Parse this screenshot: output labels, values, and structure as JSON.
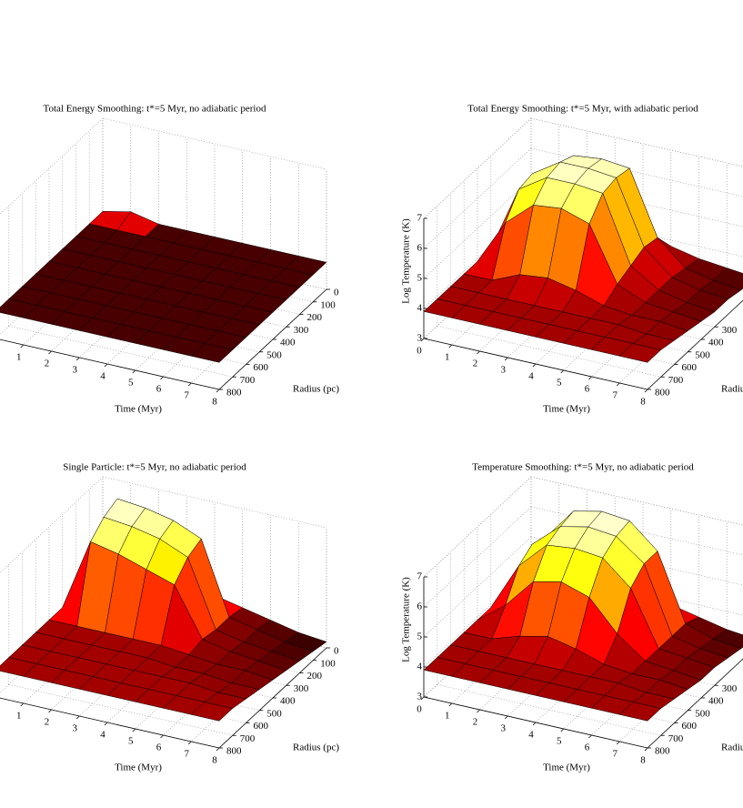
{
  "chart_data": [
    {
      "type": "surface",
      "title": "Total Energy Smoothing: t*=5 Myr, no adiabatic period",
      "xlabel": "Time (Myr)",
      "ylabel": "Radius (pc)",
      "colormap": "hot",
      "clim": [
        3.88,
        4.1
      ],
      "grid": true,
      "xlim": [
        0,
        8
      ],
      "ylim": [
        0,
        800
      ],
      "zlim": [
        3,
        7
      ],
      "xticks": [
        1,
        2,
        3,
        4,
        5,
        6,
        7,
        8
      ],
      "yticks": [
        0,
        100,
        200,
        300,
        400,
        500,
        600,
        700,
        800
      ],
      "x": [
        0,
        1,
        2,
        3,
        4,
        5,
        6,
        7,
        8
      ],
      "y": [
        0,
        100,
        200,
        300,
        400,
        500,
        600,
        700,
        800
      ],
      "z": [
        [
          3.9,
          4.1,
          3.9,
          3.9,
          3.9,
          3.9,
          3.9,
          3.9,
          3.9
        ],
        [
          3.9,
          3.9,
          3.9,
          3.9,
          3.9,
          3.9,
          3.9,
          3.9,
          3.9
        ],
        [
          3.9,
          3.9,
          3.9,
          3.9,
          3.9,
          3.9,
          3.9,
          3.9,
          3.9
        ],
        [
          3.9,
          3.9,
          3.9,
          3.9,
          3.9,
          3.9,
          3.9,
          3.9,
          3.9
        ],
        [
          3.9,
          3.9,
          3.9,
          3.9,
          3.9,
          3.9,
          3.9,
          3.9,
          3.9
        ],
        [
          3.9,
          3.9,
          3.9,
          3.9,
          3.9,
          3.9,
          3.9,
          3.9,
          3.9
        ],
        [
          3.9,
          3.9,
          3.9,
          3.9,
          3.9,
          3.9,
          3.9,
          3.9,
          3.9
        ],
        [
          3.9,
          3.9,
          3.9,
          3.9,
          3.9,
          3.9,
          3.9,
          3.9,
          3.9
        ],
        [
          3.9,
          3.9,
          3.9,
          3.9,
          3.9,
          3.9,
          3.9,
          3.9,
          3.9
        ]
      ]
    },
    {
      "type": "surface",
      "title": "Total Energy Smoothing: t*=5 Myr, with adiabatic period",
      "xlabel": "Time (Myr)",
      "ylabel": "Radius (pc)",
      "zlabel": "Log Temperature (K)",
      "colormap": "hot",
      "clim": [
        3,
        7
      ],
      "grid": true,
      "xlim": [
        0,
        8
      ],
      "ylim": [
        0,
        800
      ],
      "zlim": [
        3,
        7
      ],
      "xticks": [
        0,
        1,
        2,
        3,
        4,
        5,
        6,
        7,
        8
      ],
      "yticks": [
        300,
        400,
        500,
        600,
        700,
        800
      ],
      "zticks": [
        3,
        4,
        5,
        6,
        7
      ],
      "x": [
        0,
        1,
        2,
        3,
        4,
        5,
        6,
        7,
        8
      ],
      "y": [
        0,
        100,
        200,
        300,
        400,
        500,
        600,
        700,
        800
      ],
      "z": [
        [
          3.9,
          4.0,
          4.2,
          4.2,
          4.1,
          3.8,
          3.6,
          3.5,
          3.4
        ],
        [
          3.9,
          5.8,
          6.6,
          6.7,
          6.6,
          4.5,
          3.7,
          3.5,
          3.4
        ],
        [
          3.9,
          6.2,
          6.8,
          6.8,
          6.7,
          4.6,
          3.8,
          3.6,
          3.5
        ],
        [
          3.9,
          6.1,
          6.7,
          6.7,
          6.6,
          4.4,
          3.8,
          3.6,
          3.5
        ],
        [
          3.9,
          5.4,
          6.2,
          6.3,
          6.0,
          4.2,
          3.8,
          3.7,
          3.6
        ],
        [
          3.9,
          3.9,
          4.3,
          4.4,
          4.2,
          3.9,
          3.8,
          3.8,
          3.7
        ],
        [
          3.9,
          3.9,
          3.9,
          3.9,
          3.9,
          3.9,
          3.9,
          3.8,
          3.8
        ],
        [
          3.9,
          3.9,
          3.9,
          3.9,
          3.9,
          3.9,
          3.9,
          3.9,
          3.9
        ],
        [
          3.9,
          3.9,
          3.9,
          3.9,
          3.9,
          3.9,
          3.9,
          3.9,
          3.9
        ]
      ]
    },
    {
      "type": "surface",
      "title": "Single Particle: t*=5 Myr, no adiabatic period",
      "xlabel": "Time (Myr)",
      "ylabel": "Radius (pc)",
      "colormap": "hot",
      "clim": [
        3,
        7
      ],
      "grid": true,
      "xlim": [
        0,
        8
      ],
      "ylim": [
        0,
        800
      ],
      "zlim": [
        3,
        7
      ],
      "xticks": [
        1,
        2,
        3,
        4,
        5,
        6,
        7,
        8
      ],
      "yticks": [
        0,
        100,
        200,
        300,
        400,
        500,
        600,
        700,
        800
      ],
      "x": [
        0,
        1,
        2,
        3,
        4,
        5,
        6,
        7,
        8
      ],
      "y": [
        0,
        100,
        200,
        300,
        400,
        500,
        600,
        700,
        800
      ],
      "z": [
        [
          3.9,
          4.0,
          4.0,
          4.0,
          3.9,
          3.7,
          3.5,
          3.3,
          3.2
        ],
        [
          3.9,
          6.9,
          6.8,
          6.6,
          6.2,
          3.8,
          3.6,
          3.4,
          3.3
        ],
        [
          3.9,
          6.7,
          6.6,
          6.4,
          6.0,
          3.8,
          3.6,
          3.5,
          3.4
        ],
        [
          3.9,
          6.3,
          6.1,
          5.8,
          5.5,
          3.9,
          3.7,
          3.6,
          3.5
        ],
        [
          3.9,
          3.9,
          3.9,
          3.9,
          3.9,
          3.8,
          3.7,
          3.7,
          3.6
        ],
        [
          3.9,
          3.9,
          3.9,
          3.9,
          3.9,
          3.8,
          3.8,
          3.7,
          3.7
        ],
        [
          3.9,
          3.9,
          3.9,
          3.9,
          3.9,
          3.9,
          3.9,
          3.8,
          3.8
        ],
        [
          3.9,
          3.9,
          3.9,
          3.9,
          3.9,
          3.9,
          3.9,
          3.9,
          3.9
        ],
        [
          3.9,
          3.9,
          3.9,
          3.9,
          3.9,
          3.9,
          3.9,
          3.9,
          3.9
        ]
      ]
    },
    {
      "type": "surface",
      "title": "Temperature Smoothing: t*=5 Myr, no adiabatic period",
      "xlabel": "Time (Myr)",
      "ylabel": "Radius (pc)",
      "zlabel": "Log Temperature (K)",
      "colormap": "hot",
      "clim": [
        3,
        7
      ],
      "grid": true,
      "xlim": [
        0,
        8
      ],
      "ylim": [
        0,
        800
      ],
      "zlim": [
        3,
        7
      ],
      "xticks": [
        0,
        1,
        2,
        3,
        4,
        5,
        6,
        7,
        8
      ],
      "yticks": [
        300,
        400,
        500,
        600,
        700,
        800
      ],
      "zticks": [
        3,
        4,
        5,
        6,
        7
      ],
      "x": [
        0,
        1,
        2,
        3,
        4,
        5,
        6,
        7,
        8
      ],
      "y": [
        0,
        100,
        200,
        300,
        400,
        500,
        600,
        700,
        800
      ],
      "z": [
        [
          3.9,
          4.0,
          4.1,
          4.1,
          4.0,
          3.8,
          3.6,
          3.4,
          3.3
        ],
        [
          3.9,
          5.6,
          6.7,
          6.9,
          6.8,
          6.0,
          3.8,
          3.5,
          3.4
        ],
        [
          3.9,
          5.8,
          6.6,
          6.8,
          6.7,
          6.0,
          3.8,
          3.6,
          3.5
        ],
        [
          3.9,
          5.5,
          6.4,
          6.5,
          6.4,
          5.6,
          3.8,
          3.7,
          3.6
        ],
        [
          3.9,
          4.6,
          5.6,
          5.8,
          5.5,
          4.5,
          3.8,
          3.7,
          3.6
        ],
        [
          3.9,
          3.9,
          4.2,
          4.4,
          4.2,
          3.9,
          3.8,
          3.8,
          3.7
        ],
        [
          3.9,
          3.9,
          3.9,
          3.9,
          3.9,
          3.9,
          3.9,
          3.8,
          3.8
        ],
        [
          3.9,
          3.9,
          3.9,
          3.9,
          3.9,
          3.9,
          3.9,
          3.9,
          3.9
        ],
        [
          3.9,
          3.9,
          3.9,
          3.9,
          3.9,
          3.9,
          3.9,
          3.9,
          3.9
        ]
      ]
    }
  ]
}
